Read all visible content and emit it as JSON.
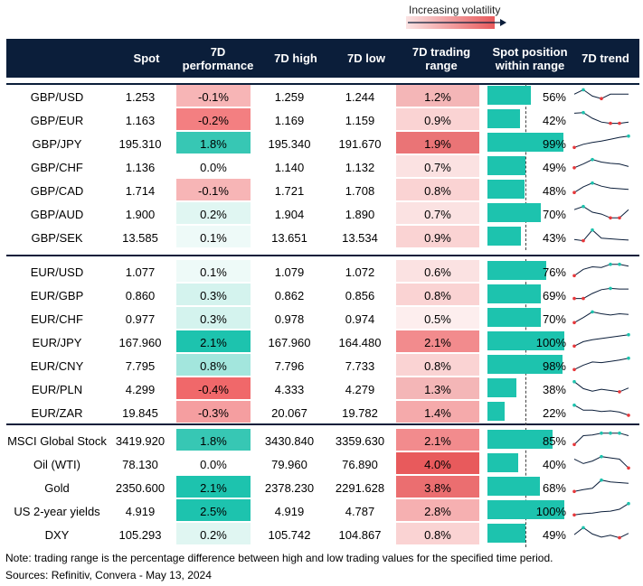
{
  "legend": {
    "volatility_label": "Increasing volatility"
  },
  "headers": {
    "spot": "Spot",
    "perf": "7D performance",
    "high": "7D high",
    "low": "7D low",
    "range": "7D trading range",
    "position": "Spot position within range",
    "trend": "7D trend"
  },
  "colors": {
    "header_bg": "#0b1e3a",
    "bar": "#1dc3ae",
    "positive_strong": "#1dc3ae",
    "negative_strong": "#f0686a",
    "volatility_high": "#e85a5c"
  },
  "chart_data": {
    "type": "table",
    "groups": [
      {
        "rows": [
          {
            "name": "GBP/USD",
            "spot": "1.253",
            "perf": "-0.1%",
            "high": "1.259",
            "low": "1.244",
            "range": "1.2%",
            "position": "56%",
            "perf_value": -0.1,
            "range_value": 1.2,
            "position_value": 56,
            "trend": [
              0.55,
              0.9,
              0.4,
              0.2,
              0.55,
              0.55,
              0.55
            ]
          },
          {
            "name": "GBP/EUR",
            "spot": "1.163",
            "perf": "-0.2%",
            "high": "1.169",
            "low": "1.159",
            "range": "0.9%",
            "position": "42%",
            "perf_value": -0.2,
            "range_value": 0.9,
            "position_value": 42,
            "trend": [
              0.9,
              0.95,
              0.5,
              0.2,
              0.1,
              0.1,
              0.2
            ]
          },
          {
            "name": "GBP/JPY",
            "spot": "195.310",
            "perf": "1.8%",
            "high": "195.340",
            "low": "191.670",
            "range": "1.9%",
            "position": "99%",
            "perf_value": 1.8,
            "range_value": 1.9,
            "position_value": 99,
            "trend": [
              0.05,
              0.3,
              0.45,
              0.55,
              0.7,
              0.85,
              0.95
            ]
          },
          {
            "name": "GBP/CHF",
            "spot": "1.136",
            "perf": "0.0%",
            "high": "1.140",
            "low": "1.132",
            "range": "0.7%",
            "position": "49%",
            "perf_value": 0.0,
            "range_value": 0.7,
            "position_value": 49,
            "trend": [
              0.3,
              0.6,
              0.95,
              0.75,
              0.65,
              0.6,
              0.4
            ]
          },
          {
            "name": "GBP/CAD",
            "spot": "1.714",
            "perf": "-0.1%",
            "high": "1.721",
            "low": "1.708",
            "range": "0.8%",
            "position": "48%",
            "perf_value": -0.1,
            "range_value": 0.8,
            "position_value": 48,
            "trend": [
              0.2,
              0.65,
              0.95,
              0.7,
              0.55,
              0.5,
              0.45
            ]
          },
          {
            "name": "GBP/AUD",
            "spot": "1.900",
            "perf": "0.2%",
            "high": "1.904",
            "low": "1.890",
            "range": "0.7%",
            "position": "70%",
            "perf_value": 0.2,
            "range_value": 0.7,
            "position_value": 70,
            "trend": [
              0.7,
              0.95,
              0.5,
              0.35,
              0.05,
              0.05,
              0.7
            ]
          },
          {
            "name": "GBP/SEK",
            "spot": "13.585",
            "perf": "0.1%",
            "high": "13.651",
            "low": "13.534",
            "range": "0.9%",
            "position": "43%",
            "perf_value": 0.1,
            "range_value": 0.9,
            "position_value": 43,
            "trend": [
              0.2,
              0.1,
              0.95,
              0.3,
              0.25,
              0.2,
              0.15
            ]
          }
        ]
      },
      {
        "rows": [
          {
            "name": "EUR/USD",
            "spot": "1.077",
            "perf": "0.1%",
            "high": "1.079",
            "low": "1.072",
            "range": "0.6%",
            "position": "76%",
            "perf_value": 0.1,
            "range_value": 0.6,
            "position_value": 76,
            "trend": [
              0.05,
              0.55,
              0.75,
              0.7,
              0.95,
              0.95,
              0.8
            ]
          },
          {
            "name": "EUR/GBP",
            "spot": "0.860",
            "perf": "0.3%",
            "high": "0.862",
            "low": "0.856",
            "range": "0.8%",
            "position": "69%",
            "perf_value": 0.3,
            "range_value": 0.8,
            "position_value": 69,
            "trend": [
              0.1,
              0.1,
              0.5,
              0.8,
              0.9,
              0.85,
              0.85
            ]
          },
          {
            "name": "EUR/CHF",
            "spot": "0.977",
            "perf": "0.3%",
            "high": "0.978",
            "low": "0.974",
            "range": "0.5%",
            "position": "70%",
            "perf_value": 0.3,
            "range_value": 0.5,
            "position_value": 70,
            "trend": [
              0.05,
              0.45,
              0.9,
              0.75,
              0.65,
              0.75,
              0.7
            ]
          },
          {
            "name": "EUR/JPY",
            "spot": "167.960",
            "perf": "2.1%",
            "high": "167.960",
            "low": "164.480",
            "range": "2.1%",
            "position": "100%",
            "perf_value": 2.1,
            "range_value": 2.1,
            "position_value": 100,
            "trend": [
              0.05,
              0.4,
              0.55,
              0.65,
              0.75,
              0.85,
              0.95
            ]
          },
          {
            "name": "EUR/CNY",
            "spot": "7.795",
            "perf": "0.8%",
            "high": "7.796",
            "low": "7.733",
            "range": "0.8%",
            "position": "98%",
            "perf_value": 0.8,
            "range_value": 0.8,
            "position_value": 98,
            "trend": [
              0.05,
              0.4,
              0.65,
              0.6,
              0.7,
              0.8,
              0.95
            ]
          },
          {
            "name": "EUR/PLN",
            "spot": "4.299",
            "perf": "-0.4%",
            "high": "4.333",
            "low": "4.279",
            "range": "1.3%",
            "position": "38%",
            "perf_value": -0.4,
            "range_value": 1.3,
            "position_value": 38,
            "trend": [
              0.95,
              0.4,
              0.2,
              0.35,
              0.25,
              0.15,
              0.45
            ]
          },
          {
            "name": "EUR/ZAR",
            "spot": "19.845",
            "perf": "-0.3%",
            "high": "20.067",
            "low": "19.782",
            "range": "1.4%",
            "position": "22%",
            "perf_value": -0.3,
            "range_value": 1.4,
            "position_value": 22,
            "trend": [
              0.95,
              0.55,
              0.55,
              0.45,
              0.5,
              0.4,
              0.15
            ]
          }
        ]
      },
      {
        "rows": [
          {
            "name": "MSCI Global Stock",
            "spot": "3419.920",
            "perf": "1.8%",
            "high": "3430.840",
            "low": "3359.630",
            "range": "2.1%",
            "position": "85%",
            "perf_value": 1.8,
            "range_value": 2.1,
            "position_value": 85,
            "trend": [
              0.05,
              0.75,
              0.8,
              0.95,
              0.95,
              0.95,
              0.75
            ]
          },
          {
            "name": "Oil (WTI)",
            "spot": "78.130",
            "perf": "0.0%",
            "high": "79.960",
            "low": "76.890",
            "range": "4.0%",
            "position": "40%",
            "perf_value": 0.0,
            "range_value": 4.0,
            "position_value": 40,
            "trend": [
              0.75,
              0.4,
              0.6,
              0.95,
              0.85,
              0.75,
              0.05
            ]
          },
          {
            "name": "Gold",
            "spot": "2350.600",
            "perf": "2.1%",
            "high": "2378.230",
            "low": "2291.628",
            "range": "3.8%",
            "position": "68%",
            "perf_value": 2.1,
            "range_value": 3.8,
            "position_value": 68,
            "trend": [
              0.05,
              0.2,
              0.3,
              0.95,
              0.8,
              0.75,
              0.7
            ]
          },
          {
            "name": "US 2-year yields",
            "spot": "4.919",
            "perf": "2.5%",
            "high": "4.919",
            "low": "4.787",
            "range": "2.8%",
            "position": "100%",
            "perf_value": 2.5,
            "range_value": 2.8,
            "position_value": 100,
            "trend": [
              0.05,
              0.15,
              0.2,
              0.3,
              0.35,
              0.5,
              0.95
            ]
          },
          {
            "name": "DXY",
            "spot": "105.293",
            "perf": "0.2%",
            "high": "105.742",
            "low": "104.867",
            "range": "0.8%",
            "position": "49%",
            "perf_value": 0.2,
            "range_value": 0.8,
            "position_value": 49,
            "trend": [
              0.35,
              0.9,
              0.4,
              0.15,
              0.3,
              0.1,
              0.45
            ]
          }
        ]
      }
    ]
  },
  "footer": {
    "note": "Note: trading range is the percentage difference between high and low trading values for the specified time period.",
    "sources": "Sources: Refinitiv, Convera - May 13, 2024"
  }
}
